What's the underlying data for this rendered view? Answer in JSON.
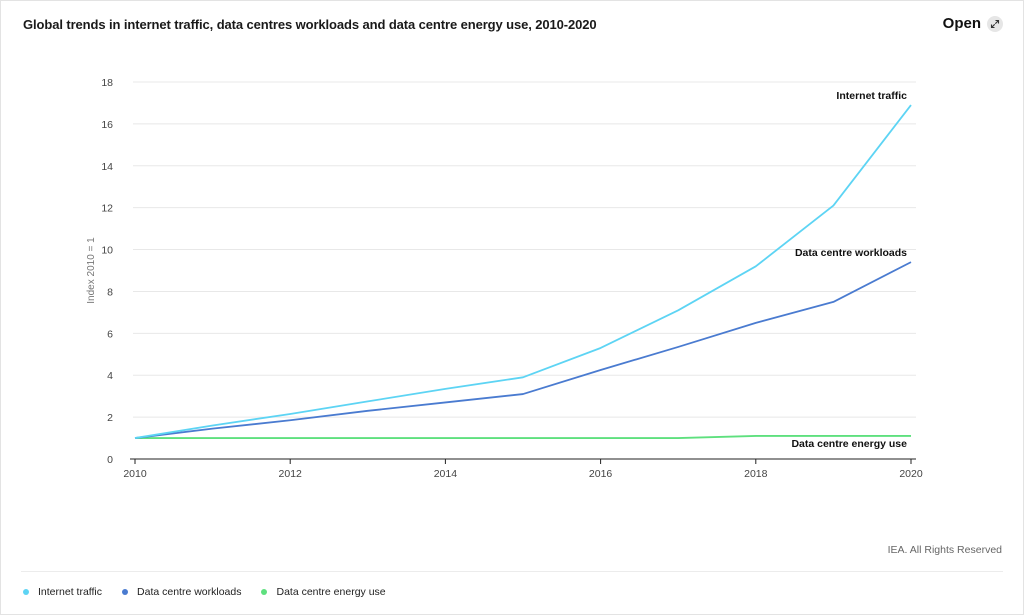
{
  "header": {
    "title": "Global trends in internet traffic, data centres workloads and data centre energy use, 2010-2020",
    "open_label": "Open"
  },
  "footer": {
    "copyright": "IEA. All Rights Reserved"
  },
  "chart_data": {
    "type": "line",
    "title": "Global trends in internet traffic, data centres workloads and data centre energy use, 2010-2020",
    "xlabel": "",
    "ylabel": "Index 2010 = 1",
    "xlim": [
      2010,
      2020
    ],
    "ylim": [
      0,
      18
    ],
    "x_ticks": [
      "2010",
      "2012",
      "2014",
      "2016",
      "2018",
      "2020"
    ],
    "y_ticks": [
      "0",
      "2",
      "4",
      "6",
      "8",
      "10",
      "12",
      "14",
      "16",
      "18"
    ],
    "grid": "horizontal",
    "legend_position": "bottom-left",
    "x": [
      2010,
      2011,
      2012,
      2013,
      2014,
      2015,
      2016,
      2017,
      2018,
      2019,
      2020
    ],
    "series": [
      {
        "name": "Internet traffic",
        "color": "#5dd4f4",
        "values": [
          1,
          1.6,
          2.15,
          2.75,
          3.35,
          3.9,
          5.3,
          7.1,
          9.2,
          12.1,
          16.9
        ]
      },
      {
        "name": "Data centre workloads",
        "color": "#4a7bd0",
        "values": [
          1,
          1.45,
          1.85,
          2.3,
          2.7,
          3.1,
          4.25,
          5.35,
          6.5,
          7.5,
          9.4
        ]
      },
      {
        "name": "Data centre energy use",
        "color": "#5ee07e",
        "values": [
          1,
          1,
          1,
          1,
          1,
          1,
          1,
          1,
          1.1,
          1.1,
          1.1
        ]
      }
    ]
  }
}
